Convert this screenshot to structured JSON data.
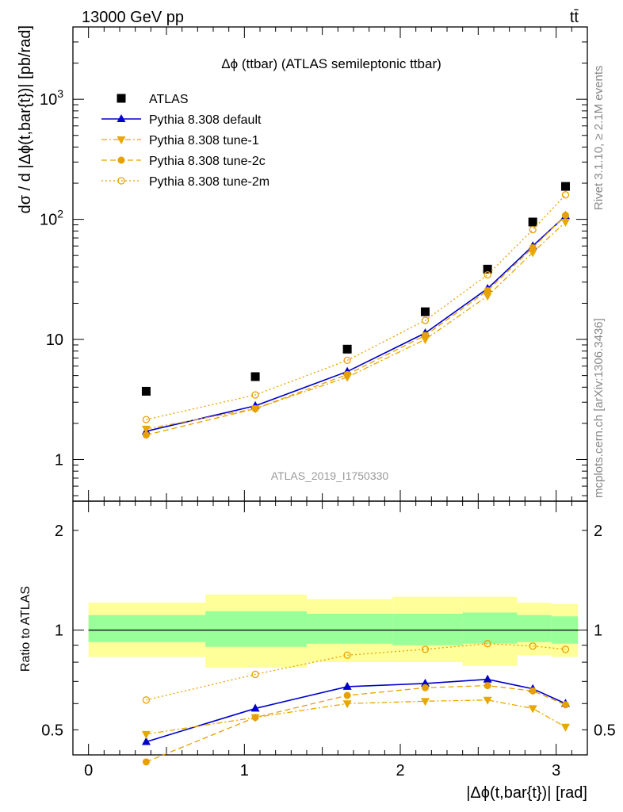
{
  "header": {
    "left": "13000 GeV pp",
    "right": "tt̄"
  },
  "side_labels": {
    "rivet": "Rivet 3.1.10, ≥ 2.1M events",
    "mcplots": "mcplots.cern.ch [arXiv:1306.3436]"
  },
  "chart_data": [
    {
      "type": "line",
      "title": "Δϕ (ttbar) (ATLAS semileptonic ttbar)",
      "ylabel": "dσ / d |Δϕ(t,bar{t})| [pb/rad]",
      "yscale": "log",
      "ylim": [
        0.45,
        4000
      ],
      "xlim": [
        -0.1,
        3.2
      ],
      "analysis_label": "ATLAS_2019_I1750330",
      "legend_placement": "top-left",
      "yticks_labeled": [
        {
          "v": 1,
          "t": "1"
        },
        {
          "v": 10,
          "t": "10"
        },
        {
          "v": 100,
          "t": "10²"
        },
        {
          "v": 1000,
          "t": "10³"
        }
      ],
      "x": [
        0.37,
        1.07,
        1.66,
        2.16,
        2.56,
        2.85,
        3.06
      ],
      "bin_edges": [
        0.0,
        0.75,
        1.4,
        1.95,
        2.4,
        2.75,
        2.97,
        3.14
      ],
      "series": [
        {
          "name": "ATLAS",
          "color": "#000000",
          "marker": "square",
          "line": "none",
          "values": [
            3.7,
            4.9,
            8.3,
            17.0,
            38.5,
            95.0,
            188.0
          ]
        },
        {
          "name": "Pythia 8.308 default",
          "color": "#0000cc",
          "marker": "triangle-up",
          "line": "solid",
          "values": [
            1.72,
            2.8,
            5.4,
            11.3,
            26.5,
            60.0,
            107.0
          ]
        },
        {
          "name": "Pythia 8.308 tune-1",
          "color": "#e8a800",
          "marker": "triangle-down",
          "line": "dashdot",
          "values": [
            1.8,
            2.65,
            4.85,
            10.0,
            23.0,
            53.0,
            95.0
          ]
        },
        {
          "name": "Pythia 8.308 tune-2c",
          "color": "#e8a000",
          "marker": "circle-filled",
          "line": "dashed",
          "values": [
            1.6,
            2.65,
            5.1,
            10.8,
            25.5,
            58.0,
            108.0
          ]
        },
        {
          "name": "Pythia 8.308 tune-2m",
          "color": "#e8a000",
          "marker": "circle-open",
          "line": "dotted",
          "values": [
            2.15,
            3.45,
            6.7,
            14.4,
            34.5,
            82.0,
            160.0
          ]
        }
      ]
    },
    {
      "type": "line",
      "ylabel": "Ratio to ATLAS",
      "xlabel": "|Δϕ(t,bar{t})| [rad]",
      "yscale": "log",
      "ylim": [
        0.42,
        2.45
      ],
      "xlim": [
        -0.1,
        3.2
      ],
      "yticks_labeled": [
        {
          "v": 0.5,
          "t": "0.5"
        },
        {
          "v": 1,
          "t": "1"
        },
        {
          "v": 2,
          "t": "2"
        }
      ],
      "xticks_labeled": [
        {
          "v": 0,
          "t": "0"
        },
        {
          "v": 1,
          "t": "1"
        },
        {
          "v": 2,
          "t": "2"
        },
        {
          "v": 3,
          "t": "3"
        }
      ],
      "x": [
        0.37,
        1.07,
        1.66,
        2.16,
        2.56,
        2.85,
        3.06
      ],
      "bin_edges": [
        0.0,
        0.75,
        1.4,
        1.95,
        2.4,
        2.75,
        2.97,
        3.14
      ],
      "band_total": {
        "color": "#ffff99",
        "lo": [
          0.83,
          0.77,
          0.8,
          0.8,
          0.78,
          0.84,
          0.83
        ],
        "hi": [
          1.21,
          1.28,
          1.24,
          1.26,
          1.26,
          1.21,
          1.2
        ]
      },
      "band_stat": {
        "color": "#99ff99",
        "lo": [
          0.92,
          0.89,
          0.91,
          0.9,
          0.91,
          0.92,
          0.91
        ],
        "hi": [
          1.11,
          1.14,
          1.12,
          1.12,
          1.13,
          1.11,
          1.1
        ]
      },
      "series": [
        {
          "name": "Pythia 8.308 default",
          "color": "#0000cc",
          "marker": "triangle-up",
          "line": "solid",
          "values": [
            0.46,
            0.58,
            0.675,
            0.69,
            0.71,
            0.665,
            0.6
          ]
        },
        {
          "name": "Pythia 8.308 tune-1",
          "color": "#e8a800",
          "marker": "triangle-down",
          "line": "dashdot",
          "values": [
            0.485,
            0.545,
            0.6,
            0.61,
            0.615,
            0.58,
            0.51
          ]
        },
        {
          "name": "Pythia 8.308 tune-2c",
          "color": "#e8a000",
          "marker": "circle-filled",
          "line": "dashed",
          "values": [
            0.4,
            0.545,
            0.635,
            0.67,
            0.68,
            0.655,
            0.595
          ]
        },
        {
          "name": "Pythia 8.308 tune-2m",
          "color": "#e8a000",
          "marker": "circle-open",
          "line": "dotted",
          "values": [
            0.615,
            0.735,
            0.84,
            0.875,
            0.91,
            0.895,
            0.875
          ]
        }
      ]
    }
  ]
}
